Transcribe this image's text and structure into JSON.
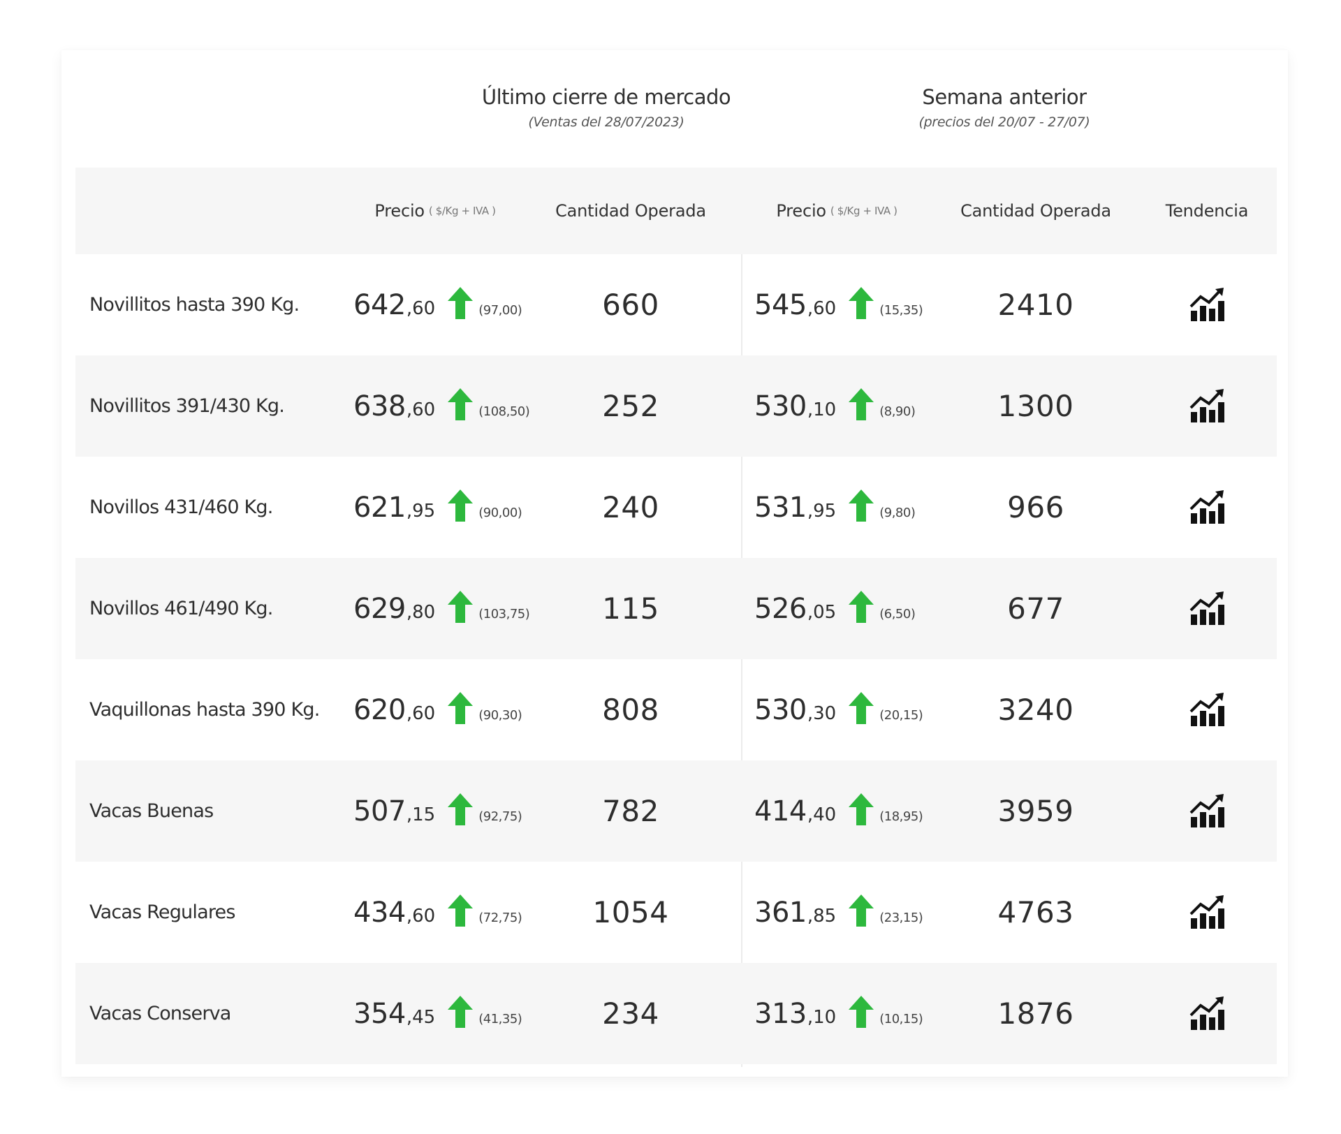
{
  "groups": {
    "last_close": {
      "title": "Último cierre de mercado",
      "subtitle": "(Ventas del 28/07/2023)"
    },
    "previous_week": {
      "title": "Semana anterior",
      "subtitle": "(precios del 20/07 - 27/07)"
    }
  },
  "columns": {
    "price_label": "Precio",
    "price_unit": "( $/Kg + IVA )",
    "quantity_label": "Cantidad Operada",
    "trend_label": "Tendencia"
  },
  "icons": {
    "change": "arrow-up-icon",
    "trend": "trend-up-chart-icon"
  },
  "colors": {
    "up_arrow": "#2db83d",
    "row_shade": "#f6f6f6",
    "text": "#2d2d2d"
  },
  "rows": [
    {
      "category": "Novillitos hasta 390 Kg.",
      "last": {
        "price_int": "642",
        "price_dec": ",60",
        "delta": "(97,00)",
        "quantity": "660"
      },
      "prev": {
        "price_int": "545",
        "price_dec": ",60",
        "delta": "(15,35)",
        "quantity": "2410"
      }
    },
    {
      "category": "Novillitos 391/430 Kg.",
      "last": {
        "price_int": "638",
        "price_dec": ",60",
        "delta": "(108,50)",
        "quantity": "252"
      },
      "prev": {
        "price_int": "530",
        "price_dec": ",10",
        "delta": "(8,90)",
        "quantity": "1300"
      }
    },
    {
      "category": "Novillos 431/460 Kg.",
      "last": {
        "price_int": "621",
        "price_dec": ",95",
        "delta": "(90,00)",
        "quantity": "240"
      },
      "prev": {
        "price_int": "531",
        "price_dec": ",95",
        "delta": "(9,80)",
        "quantity": "966"
      }
    },
    {
      "category": "Novillos 461/490 Kg.",
      "last": {
        "price_int": "629",
        "price_dec": ",80",
        "delta": "(103,75)",
        "quantity": "115"
      },
      "prev": {
        "price_int": "526",
        "price_dec": ",05",
        "delta": "(6,50)",
        "quantity": "677"
      }
    },
    {
      "category": "Vaquillonas hasta 390 Kg.",
      "last": {
        "price_int": "620",
        "price_dec": ",60",
        "delta": "(90,30)",
        "quantity": "808"
      },
      "prev": {
        "price_int": "530",
        "price_dec": ",30",
        "delta": "(20,15)",
        "quantity": "3240"
      }
    },
    {
      "category": "Vacas Buenas",
      "last": {
        "price_int": "507",
        "price_dec": ",15",
        "delta": "(92,75)",
        "quantity": "782"
      },
      "prev": {
        "price_int": "414",
        "price_dec": ",40",
        "delta": "(18,95)",
        "quantity": "3959"
      }
    },
    {
      "category": "Vacas Regulares",
      "last": {
        "price_int": "434",
        "price_dec": ",60",
        "delta": "(72,75)",
        "quantity": "1054"
      },
      "prev": {
        "price_int": "361",
        "price_dec": ",85",
        "delta": "(23,15)",
        "quantity": "4763"
      }
    },
    {
      "category": "Vacas Conserva",
      "last": {
        "price_int": "354",
        "price_dec": ",45",
        "delta": "(41,35)",
        "quantity": "234"
      },
      "prev": {
        "price_int": "313",
        "price_dec": ",10",
        "delta": "(10,15)",
        "quantity": "1876"
      }
    }
  ]
}
